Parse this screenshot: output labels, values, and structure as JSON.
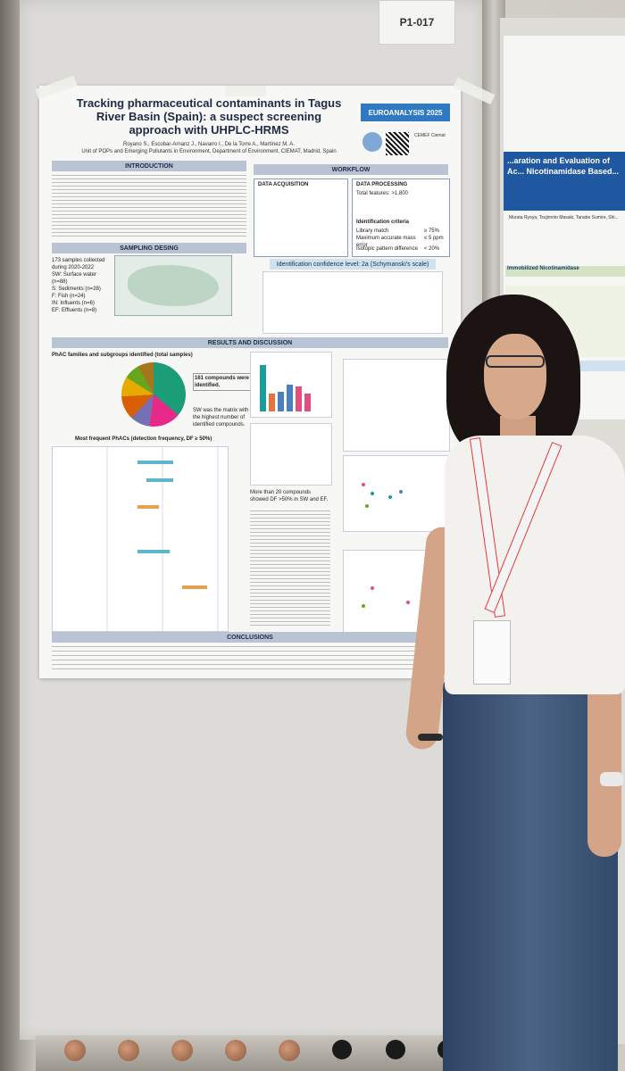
{
  "booth_label": "P1-017",
  "poster": {
    "title": "Tracking pharmaceutical contaminants in Tagus River Basin (Spain): a suspect screening approach with UHPLC-HRMS",
    "authors": "Royano S., Escobar-Arnanz J., Navarro I., De la Torre A., Martínez M. A.",
    "affiliation": "Unit of POPs and Emerging Pollutants in Environment, Department of Environment, CIEMAT, Madrid, Spain",
    "conference": "EUROANALYSIS 2025",
    "social": "CEMEF Ciemat",
    "sections": {
      "introduction": "INTRODUCTION",
      "workflow": "WORKFLOW",
      "sampling": "SAMPLING DESING",
      "results": "RESULTS AND DISCUSSION",
      "conclusions": "CONCLUSIONS"
    },
    "workflow": {
      "acquisition_title": "DATA ACQUISITION",
      "processing_title": "DATA PROCESSING",
      "total_features": "Total features: >1,800",
      "identification_criteria": "Identification criteria",
      "library_match": "Library match",
      "library_match_value": "≥ 75%",
      "mass_error": "Maximum accurate mass error",
      "mass_error_value": "≤ 5 ppm",
      "isotopic": "Isotopic pattern difference",
      "isotopic_value": "< 20%",
      "confidence": "Identification confidence level: 2a (Schymanski's scale)"
    },
    "sampling": {
      "samples_collected": "173 samples collected during 2020-2022",
      "sw": "SW: Surface water (n=88)",
      "s": "S: Sediments (n=28)",
      "f": "F: Fish (n=24)",
      "in": "IN: Influents (n=6)",
      "ef": "EF: Effluents (n=8)"
    },
    "results": {
      "families_title": "PhAC families and subgroups identified (total samples)",
      "compounds_identified": "161 compounds were identified.",
      "sw_note": "SW was the matrix with the highest number of identified compounds.",
      "frequent_title": "Most frequent PhACs (detection frequency, DF ≥ 50%)",
      "more_than_20": "More than 20 compounds showed DF >50% in SW and EF."
    }
  },
  "neighbor_poster": {
    "title": "...aration and Evaluation of Ac... Nicotinamidase Based...",
    "authors": "Murata Ryoya, Tsujimoto Masaki, Tanabe Sumire, Shi...",
    "section": "Immobilized Nicotinamidase",
    "measure": "Measure..."
  }
}
